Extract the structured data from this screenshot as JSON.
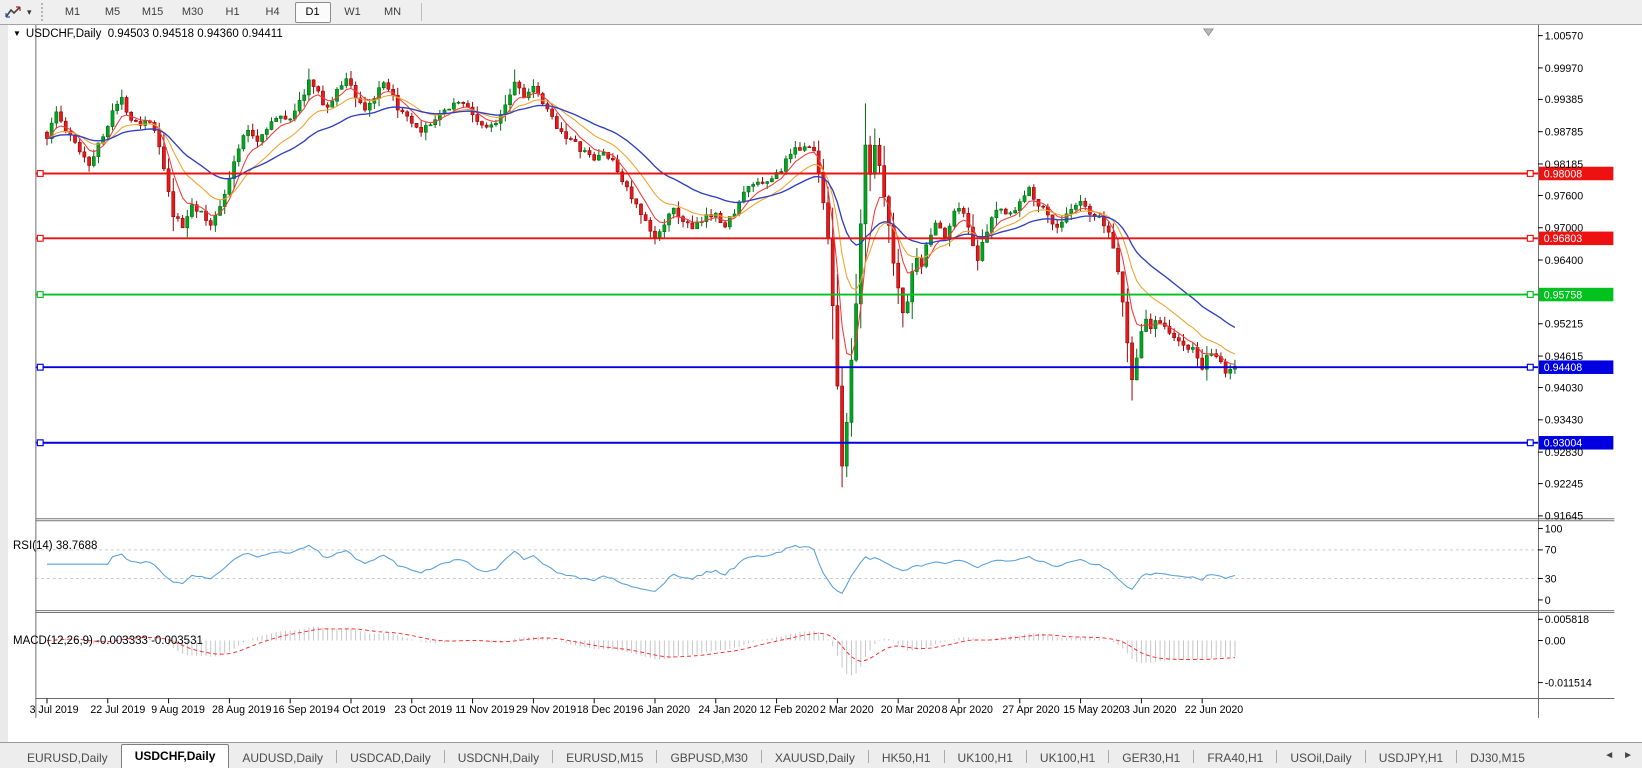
{
  "icons": {
    "dropdown_caret": "▾",
    "title_caret": "▼",
    "tab_prev": "◄",
    "tab_next": "►"
  },
  "toolbar": {
    "timeframes": [
      "M1",
      "M5",
      "M15",
      "M30",
      "H1",
      "H4",
      "D1",
      "W1",
      "MN"
    ],
    "active": "D1"
  },
  "chart_data": [
    {
      "type": "candlestick",
      "title_symbol": "USDCHF,Daily",
      "title_ohlc": "0.94503 0.94518 0.94360 0.94411",
      "ohlc_display": {
        "open": "0.94503",
        "high": "0.94518",
        "low": "0.94360",
        "close": "0.94411"
      },
      "y_axis_ticks": [
        "1.00570",
        "0.99970",
        "0.99385",
        "0.98785",
        "0.98185",
        "0.97600",
        "0.97000",
        "0.96400",
        "0.95215",
        "0.94615",
        "0.94030",
        "0.93430",
        "0.92830",
        "0.92245",
        "0.91645"
      ],
      "y_range": {
        "top": 1.0057,
        "bottom": 0.91645
      },
      "x_axis_dates": [
        "3 Jul 2019",
        "22 Jul 2019",
        "9 Aug 2019",
        "28 Aug 2019",
        "16 Sep 2019",
        "4 Oct 2019",
        "23 Oct 2019",
        "11 Nov 2019",
        "29 Nov 2019",
        "18 Dec 2019",
        "6 Jan 2020",
        "24 Jan 2020",
        "12 Feb 2020",
        "2 Mar 2020",
        "20 Mar 2020",
        "8 Apr 2020",
        "27 Apr 2020",
        "15 May 2020",
        "3 Jun 2020",
        "22 Jun 2020"
      ],
      "horizontal_lines": [
        {
          "price": 0.98008,
          "label": "0.98008",
          "color": "#ee1111"
        },
        {
          "price": 0.96803,
          "label": "0.96803",
          "color": "#ee1111"
        },
        {
          "price": 0.95758,
          "label": "0.95758",
          "color": "#00c21e"
        },
        {
          "price": 0.94408,
          "label": "0.94408",
          "color": "#0000e0"
        },
        {
          "price": 0.93004,
          "label": "0.93004",
          "color": "#0000e0"
        }
      ],
      "colors": {
        "up_fill": "#00a81f",
        "up_stroke": "#006612",
        "down_fill": "#e51a1a",
        "down_stroke": "#8f0000",
        "ma_fast": "#f53b3b",
        "ma_medium": "#eda32e",
        "ma_slow": "#2f3fc2",
        "axis_line": "#6b6b6b"
      },
      "moving_averages": [
        {
          "name": "fast",
          "period": 6,
          "color": "#f53b3b"
        },
        {
          "name": "medium",
          "period": 14,
          "color": "#eda32e"
        },
        {
          "name": "slow",
          "period": 30,
          "color": "#2f3fc2"
        }
      ],
      "price_path_anchors": [
        [
          0,
          0.987
        ],
        [
          2,
          0.9915
        ],
        [
          4,
          0.988
        ],
        [
          7,
          0.9845
        ],
        [
          9,
          0.982
        ],
        [
          12,
          0.987
        ],
        [
          14,
          0.992
        ],
        [
          16,
          0.9937
        ],
        [
          18,
          0.9905
        ],
        [
          20,
          0.9895
        ],
        [
          22,
          0.9902
        ],
        [
          24,
          0.985
        ],
        [
          26,
          0.9762
        ],
        [
          27,
          0.9722
        ],
        [
          29,
          0.97
        ],
        [
          31,
          0.9745
        ],
        [
          33,
          0.9725
        ],
        [
          35,
          0.9702
        ],
        [
          37,
          0.9745
        ],
        [
          39,
          0.979
        ],
        [
          41,
          0.985
        ],
        [
          43,
          0.9882
        ],
        [
          45,
          0.9862
        ],
        [
          47,
          0.9888
        ],
        [
          49,
          0.9902
        ],
        [
          52,
          0.9906
        ],
        [
          54,
          0.9932
        ],
        [
          56,
          0.9972
        ],
        [
          58,
          0.9948
        ],
        [
          60,
          0.9922
        ],
        [
          62,
          0.9952
        ],
        [
          64,
          0.998
        ],
        [
          66,
          0.9945
        ],
        [
          68,
          0.992
        ],
        [
          70,
          0.9942
        ],
        [
          72,
          0.9965
        ],
        [
          74,
          0.994
        ],
        [
          76,
          0.991
        ],
        [
          78,
          0.9892
        ],
        [
          80,
          0.9872
        ],
        [
          82,
          0.9896
        ],
        [
          84,
          0.9906
        ],
        [
          86,
          0.9926
        ],
        [
          88,
          0.9936
        ],
        [
          90,
          0.9922
        ],
        [
          92,
          0.99
        ],
        [
          94,
          0.9882
        ],
        [
          96,
          0.9898
        ],
        [
          98,
          0.9932
        ],
        [
          100,
          0.9972
        ],
        [
          102,
          0.9948
        ],
        [
          104,
          0.9958
        ],
        [
          106,
          0.993
        ],
        [
          108,
          0.9902
        ],
        [
          110,
          0.988
        ],
        [
          112,
          0.9862
        ],
        [
          114,
          0.9846
        ],
        [
          117,
          0.9826
        ],
        [
          119,
          0.9842
        ],
        [
          121,
          0.982
        ],
        [
          123,
          0.979
        ],
        [
          125,
          0.9756
        ],
        [
          127,
          0.9722
        ],
        [
          130,
          0.9678
        ],
        [
          132,
          0.9712
        ],
        [
          134,
          0.973
        ],
        [
          136,
          0.9714
        ],
        [
          138,
          0.9696
        ],
        [
          140,
          0.9712
        ],
        [
          143,
          0.9732
        ],
        [
          145,
          0.97
        ],
        [
          147,
          0.9732
        ],
        [
          149,
          0.9762
        ],
        [
          151,
          0.9782
        ],
        [
          153,
          0.9776
        ],
        [
          156,
          0.98
        ],
        [
          158,
          0.9822
        ],
        [
          160,
          0.9842
        ],
        [
          162,
          0.9856
        ],
        [
          164,
          0.984
        ],
        [
          165,
          0.9802
        ],
        [
          166,
          0.9752
        ],
        [
          167,
          0.9682
        ],
        [
          168,
          0.956
        ],
        [
          169,
          0.94
        ],
        [
          170,
          0.9262
        ],
        [
          171,
          0.9335
        ],
        [
          172,
          0.9455
        ],
        [
          173,
          0.9555
        ],
        [
          174,
          0.9705
        ],
        [
          175,
          0.9852
        ],
        [
          176,
          0.98
        ],
        [
          177,
          0.9858
        ],
        [
          178,
          0.982
        ],
        [
          179,
          0.9762
        ],
        [
          180,
          0.97
        ],
        [
          181,
          0.964
        ],
        [
          182,
          0.9582
        ],
        [
          183,
          0.9545
        ],
        [
          184,
          0.9565
        ],
        [
          185,
          0.9612
        ],
        [
          186,
          0.965
        ],
        [
          187,
          0.9632
        ],
        [
          188,
          0.9662
        ],
        [
          190,
          0.9712
        ],
        [
          192,
          0.9682
        ],
        [
          194,
          0.9726
        ],
        [
          195,
          0.9742
        ],
        [
          197,
          0.9702
        ],
        [
          199,
          0.9642
        ],
        [
          201,
          0.9692
        ],
        [
          203,
          0.9732
        ],
        [
          205,
          0.9732
        ],
        [
          207,
          0.9732
        ],
        [
          208,
          0.9746
        ],
        [
          210,
          0.9772
        ],
        [
          212,
          0.9746
        ],
        [
          214,
          0.9722
        ],
        [
          216,
          0.9702
        ],
        [
          218,
          0.9722
        ],
        [
          221,
          0.9746
        ],
        [
          223,
          0.9722
        ],
        [
          225,
          0.9715
        ],
        [
          227,
          0.9692
        ],
        [
          228,
          0.9662
        ],
        [
          229,
          0.9622
        ],
        [
          230,
          0.9562
        ],
        [
          231,
          0.9482
        ],
        [
          232,
          0.9422
        ],
        [
          233,
          0.9462
        ],
        [
          234,
          0.9502
        ],
        [
          235,
          0.9532
        ],
        [
          236,
          0.9512
        ],
        [
          237,
          0.9532
        ],
        [
          239,
          0.9522
        ],
        [
          241,
          0.9492
        ],
        [
          243,
          0.9482
        ],
        [
          245,
          0.9472
        ],
        [
          247,
          0.9442
        ],
        [
          248,
          0.9456
        ],
        [
          250,
          0.9462
        ],
        [
          252,
          0.9432
        ],
        [
          254,
          0.9441
        ]
      ],
      "wick_overrides": {
        "56": {
          "high": 0.9996
        },
        "64": {
          "high": 0.9988
        },
        "100": {
          "high": 0.9994
        },
        "170": {
          "low": 0.9228
        },
        "175": {
          "high": 0.9921
        },
        "232": {
          "low": 0.9379
        }
      },
      "bar_count": 255,
      "bars_per_date_label": 13
    },
    {
      "type": "line",
      "name": "RSI",
      "label": "RSI(14) 38.7688",
      "period": 14,
      "value": "38.7688",
      "color": "#56a0dc",
      "range": [
        0,
        100
      ],
      "levels_labeled": [
        "100",
        "70",
        "30",
        "0"
      ],
      "levels_dashed": [
        70,
        30
      ]
    },
    {
      "type": "macd",
      "label": "MACD(12,26,9) -0.003333 -0.003531",
      "params": "12,26,9",
      "values": [
        "-0.003333",
        "-0.003531"
      ],
      "axis_ticks": [
        {
          "label": "0.005818",
          "value": 0.005818
        },
        {
          "label": "0.00",
          "value": 0
        },
        {
          "label": "-0.011514",
          "value": -0.011514
        }
      ],
      "histogram_color": "#c4c4c4",
      "signal_color": "#ff2a2a"
    }
  ],
  "tabs": {
    "items": [
      "EURUSD,Daily",
      "USDCHF,Daily",
      "AUDUSD,Daily",
      "USDCAD,Daily",
      "USDCNH,Daily",
      "EURUSD,M15",
      "GBPUSD,M30",
      "XAUUSD,Daily",
      "HK50,H1",
      "UK100,H1",
      "UK100,H1",
      "GER30,H1",
      "FRA40,H1",
      "USOil,Daily",
      "USDJPY,H1",
      "DJ30,M15"
    ],
    "active_index": 1
  }
}
